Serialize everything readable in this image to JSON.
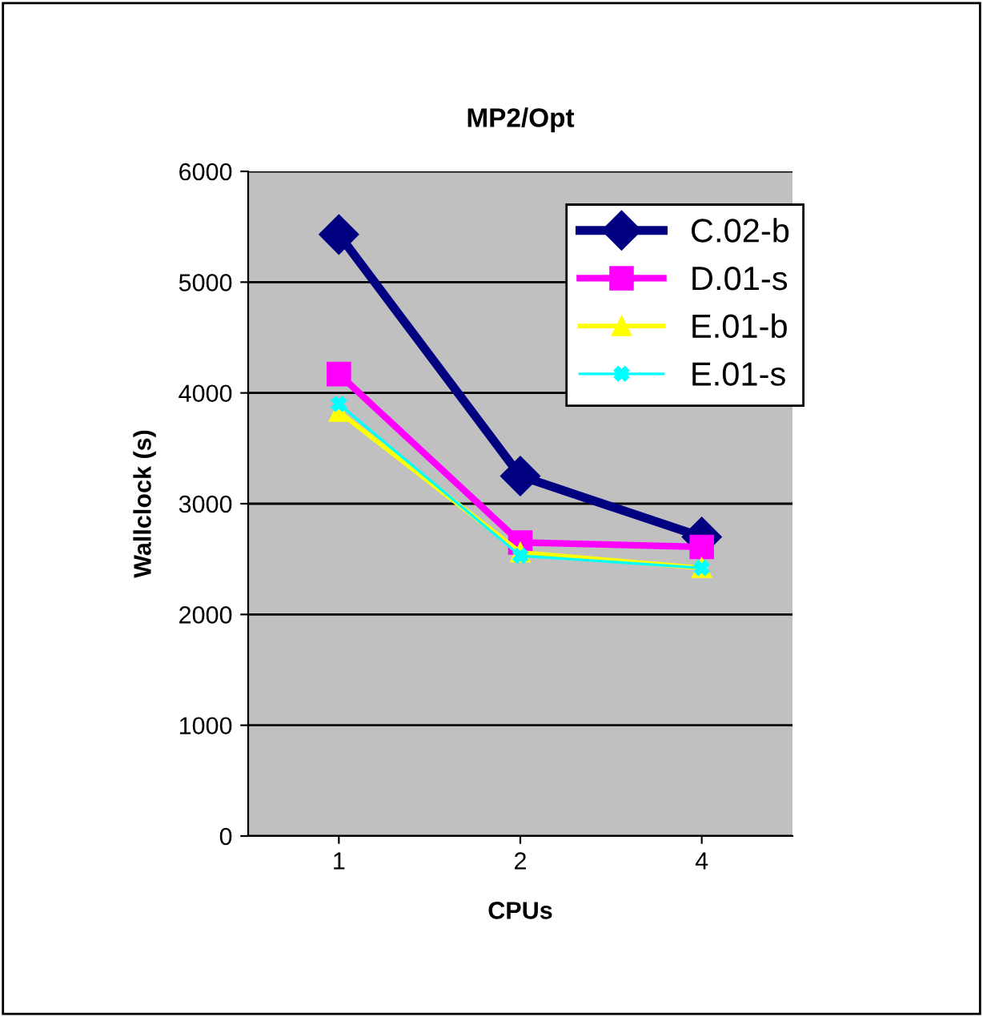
{
  "chart_data": {
    "type": "line",
    "title": "MP2/Opt",
    "xlabel": "CPUs",
    "ylabel": "Wallclock (s)",
    "categories": [
      "1",
      "2",
      "4"
    ],
    "series": [
      {
        "name": "C.02-b",
        "color": "#000080",
        "marker": "diamond",
        "values": [
          5430,
          3250,
          2700
        ]
      },
      {
        "name": "D.01-s",
        "color": "#ff00ff",
        "marker": "square",
        "values": [
          4170,
          2650,
          2610
        ]
      },
      {
        "name": "E.01-b",
        "color": "#ffff00",
        "marker": "triangle",
        "values": [
          3830,
          2560,
          2420
        ]
      },
      {
        "name": "E.01-s",
        "color": "#00ffff",
        "marker": "cross",
        "values": [
          3900,
          2530,
          2420
        ]
      }
    ],
    "ylim": [
      0,
      6000
    ],
    "yticks": [
      0,
      1000,
      2000,
      3000,
      4000,
      5000,
      6000
    ],
    "grid": "y",
    "legend": "top right"
  }
}
